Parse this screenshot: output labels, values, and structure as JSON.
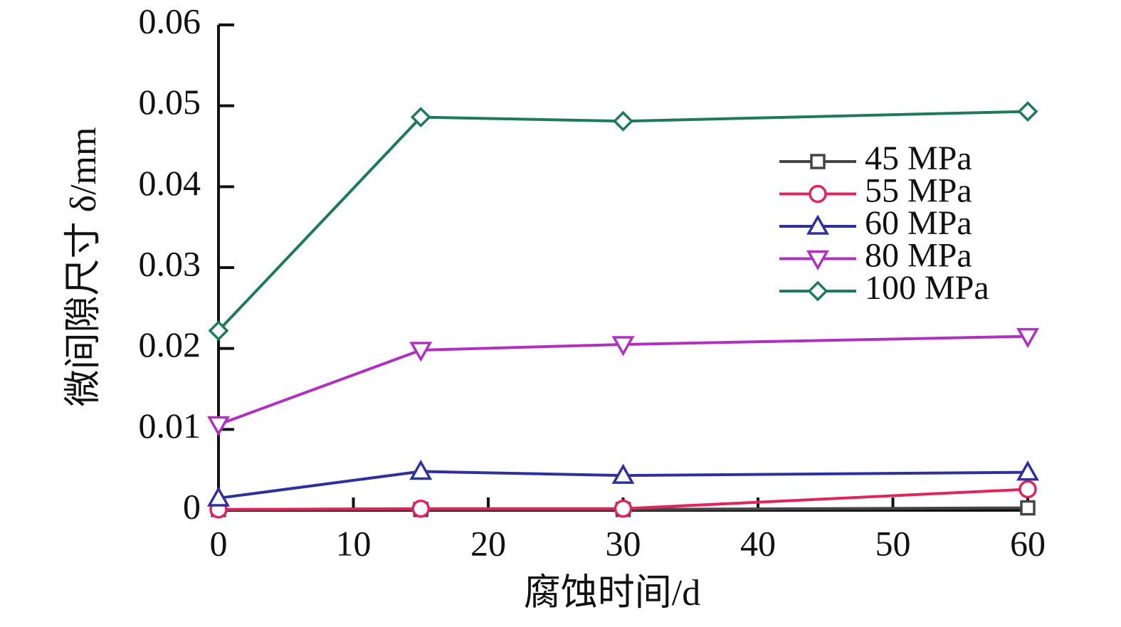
{
  "chart_data": {
    "type": "line",
    "x": [
      0,
      15,
      30,
      60
    ],
    "series": [
      {
        "name": "45 MPa",
        "color": "#454545",
        "marker": "square",
        "values": [
          0.0001,
          0.0001,
          0.0001,
          0.0003
        ]
      },
      {
        "name": "55 MPa",
        "color": "#e0245e",
        "marker": "circle",
        "values": [
          0.0001,
          0.0002,
          0.0002,
          0.0026
        ]
      },
      {
        "name": "60 MPa",
        "color": "#30309a",
        "marker": "triangle-up",
        "values": [
          0.0015,
          0.0048,
          0.0043,
          0.0047
        ]
      },
      {
        "name": "80 MPa",
        "color": "#b030c0",
        "marker": "triangle-down",
        "values": [
          0.0106,
          0.0198,
          0.0205,
          0.0215
        ]
      },
      {
        "name": "100 MPa",
        "color": "#1f7a5a",
        "marker": "diamond",
        "values": [
          0.0222,
          0.0486,
          0.0481,
          0.0493
        ]
      }
    ],
    "xlabel": "腐蚀时间/d",
    "ylabel": "微间隙尺寸 δ/mm",
    "xlim": [
      0,
      60
    ],
    "xticks": [
      0,
      10,
      20,
      30,
      40,
      50,
      60
    ],
    "ylim": [
      0,
      0.06
    ],
    "yticks": [
      0,
      0.01,
      0.02,
      0.03,
      0.04,
      0.05,
      0.06
    ],
    "legend": "upper right"
  }
}
